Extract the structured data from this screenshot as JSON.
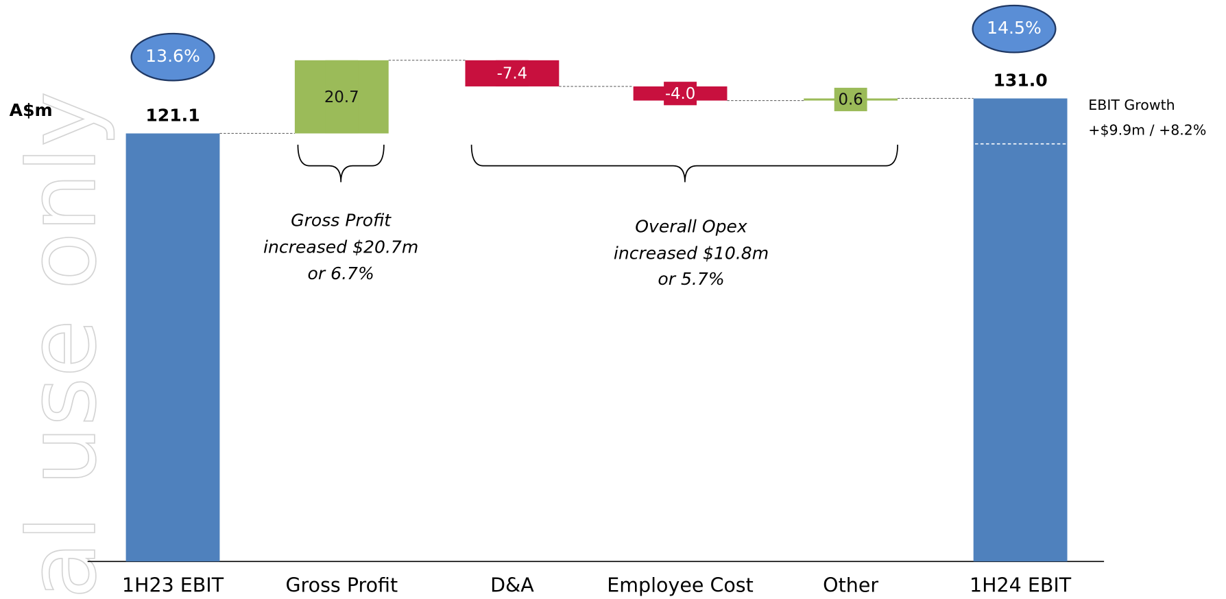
{
  "chart_data": {
    "type": "waterfall",
    "unit_label": "A$m",
    "categories": [
      "1H23 EBIT",
      "Gross Profit",
      "D&A",
      "Employee Cost",
      "Other",
      "1H24 EBIT"
    ],
    "values": [
      121.1,
      20.7,
      -7.4,
      -4.0,
      0.6,
      131.0
    ],
    "value_labels": [
      "121.1",
      "20.7",
      "-7.4",
      "-4.0",
      "0.6",
      "131.0"
    ],
    "totals": [
      true,
      false,
      false,
      false,
      false,
      true
    ],
    "colors": [
      "#4f81bd",
      "#9bbb59",
      "#c8103e",
      "#c8103e",
      "#9bbb59",
      "#4f81bd"
    ],
    "ylim": [
      0,
      150
    ],
    "margin_labels": [
      "13.6%",
      "14.5%"
    ],
    "gross_profit_note": [
      "Gross Profit",
      "increased $20.7m",
      "or 6.7%"
    ],
    "opex_note": [
      "Overall Opex",
      "increased $10.8m",
      "or 5.7%"
    ],
    "growth_note": [
      "EBIT Growth",
      "+$9.9m / +8.2%"
    ],
    "watermark": "al use only"
  }
}
